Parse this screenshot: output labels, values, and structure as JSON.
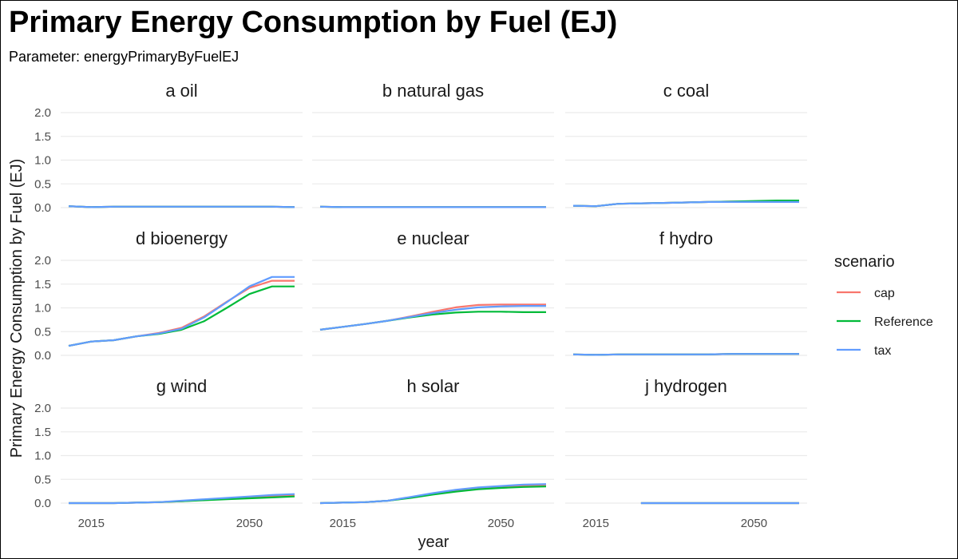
{
  "chart_data": {
    "type": "line",
    "title": "Primary Energy Consumption by Fuel (EJ)",
    "subtitle": "Parameter: energyPrimaryByFuelEJ",
    "xlabel": "year",
    "ylabel": "Primary Energy Consumption by Fuel (EJ)",
    "xlim": [
      2010,
      2060
    ],
    "ylim": [
      -0.05,
      2.1
    ],
    "yticks": [
      0.0,
      0.5,
      1.0,
      1.5,
      2.0
    ],
    "ytick_labels": [
      "0.0",
      "0.5",
      "1.0",
      "1.5",
      "2.0"
    ],
    "xticks": [
      2015,
      2050
    ],
    "xtick_labels": [
      "2015",
      "2050"
    ],
    "grid": true,
    "legend": {
      "title": "scenario",
      "placement": "right"
    },
    "colors": {
      "cap": "#F8766D",
      "Reference": "#00BA38",
      "tax": "#619CFF"
    },
    "series_names": [
      "cap",
      "Reference",
      "tax"
    ],
    "panels": [
      {
        "label": "a oil",
        "series": [
          {
            "name": "cap",
            "x": [
              2010,
              2015,
              2020,
              2025,
              2030,
              2035,
              2040,
              2045,
              2050,
              2055,
              2060
            ],
            "y": [
              0.03,
              0.01,
              0.02,
              0.02,
              0.02,
              0.02,
              0.02,
              0.02,
              0.02,
              0.02,
              0.01
            ]
          },
          {
            "name": "Reference",
            "x": [
              2010,
              2015,
              2020,
              2025,
              2030,
              2035,
              2040,
              2045,
              2050,
              2055,
              2060
            ],
            "y": [
              0.03,
              0.01,
              0.02,
              0.02,
              0.02,
              0.02,
              0.02,
              0.02,
              0.02,
              0.02,
              0.01
            ]
          },
          {
            "name": "tax",
            "x": [
              2010,
              2015,
              2020,
              2025,
              2030,
              2035,
              2040,
              2045,
              2050,
              2055,
              2060
            ],
            "y": [
              0.03,
              0.01,
              0.02,
              0.02,
              0.02,
              0.02,
              0.02,
              0.02,
              0.02,
              0.02,
              0.01
            ]
          }
        ]
      },
      {
        "label": "b natural gas",
        "series": [
          {
            "name": "cap",
            "x": [
              2010,
              2015,
              2020,
              2025,
              2030,
              2035,
              2040,
              2045,
              2050,
              2055,
              2060
            ],
            "y": [
              0.02,
              0.01,
              0.01,
              0.01,
              0.01,
              0.01,
              0.01,
              0.01,
              0.01,
              0.01,
              0.01
            ]
          },
          {
            "name": "Reference",
            "x": [
              2010,
              2015,
              2020,
              2025,
              2030,
              2035,
              2040,
              2045,
              2050,
              2055,
              2060
            ],
            "y": [
              0.02,
              0.01,
              0.01,
              0.01,
              0.01,
              0.01,
              0.01,
              0.01,
              0.01,
              0.01,
              0.01
            ]
          },
          {
            "name": "tax",
            "x": [
              2010,
              2015,
              2020,
              2025,
              2030,
              2035,
              2040,
              2045,
              2050,
              2055,
              2060
            ],
            "y": [
              0.02,
              0.01,
              0.01,
              0.01,
              0.01,
              0.01,
              0.01,
              0.01,
              0.01,
              0.01,
              0.01
            ]
          }
        ]
      },
      {
        "label": "c coal",
        "series": [
          {
            "name": "cap",
            "x": [
              2010,
              2015,
              2020,
              2025,
              2030,
              2035,
              2040,
              2045,
              2050,
              2055,
              2060
            ],
            "y": [
              0.04,
              0.03,
              0.08,
              0.09,
              0.1,
              0.11,
              0.12,
              0.13,
              0.13,
              0.13,
              0.13
            ]
          },
          {
            "name": "Reference",
            "x": [
              2010,
              2015,
              2020,
              2025,
              2030,
              2035,
              2040,
              2045,
              2050,
              2055,
              2060
            ],
            "y": [
              0.04,
              0.03,
              0.08,
              0.09,
              0.1,
              0.11,
              0.12,
              0.13,
              0.14,
              0.15,
              0.15
            ]
          },
          {
            "name": "tax",
            "x": [
              2010,
              2015,
              2020,
              2025,
              2030,
              2035,
              2040,
              2045,
              2050,
              2055,
              2060
            ],
            "y": [
              0.04,
              0.03,
              0.08,
              0.09,
              0.1,
              0.11,
              0.12,
              0.12,
              0.12,
              0.12,
              0.12
            ]
          }
        ]
      },
      {
        "label": "d bioenergy",
        "series": [
          {
            "name": "cap",
            "x": [
              2010,
              2015,
              2020,
              2025,
              2030,
              2035,
              2040,
              2045,
              2050,
              2055,
              2060
            ],
            "y": [
              0.2,
              0.29,
              0.32,
              0.4,
              0.47,
              0.58,
              0.82,
              1.13,
              1.42,
              1.57,
              1.57
            ]
          },
          {
            "name": "Reference",
            "x": [
              2010,
              2015,
              2020,
              2025,
              2030,
              2035,
              2040,
              2045,
              2050,
              2055,
              2060
            ],
            "y": [
              0.2,
              0.29,
              0.32,
              0.4,
              0.45,
              0.54,
              0.72,
              1.0,
              1.29,
              1.45,
              1.45
            ]
          },
          {
            "name": "tax",
            "x": [
              2010,
              2015,
              2020,
              2025,
              2030,
              2035,
              2040,
              2045,
              2050,
              2055,
              2060
            ],
            "y": [
              0.2,
              0.29,
              0.32,
              0.4,
              0.46,
              0.56,
              0.8,
              1.12,
              1.45,
              1.65,
              1.65
            ]
          }
        ]
      },
      {
        "label": "e nuclear",
        "series": [
          {
            "name": "cap",
            "x": [
              2010,
              2015,
              2020,
              2025,
              2030,
              2035,
              2040,
              2045,
              2050,
              2055,
              2060
            ],
            "y": [
              0.54,
              0.6,
              0.66,
              0.73,
              0.82,
              0.92,
              1.01,
              1.06,
              1.07,
              1.07,
              1.07
            ]
          },
          {
            "name": "Reference",
            "x": [
              2010,
              2015,
              2020,
              2025,
              2030,
              2035,
              2040,
              2045,
              2050,
              2055,
              2060
            ],
            "y": [
              0.54,
              0.6,
              0.66,
              0.73,
              0.8,
              0.86,
              0.9,
              0.92,
              0.92,
              0.91,
              0.91
            ]
          },
          {
            "name": "tax",
            "x": [
              2010,
              2015,
              2020,
              2025,
              2030,
              2035,
              2040,
              2045,
              2050,
              2055,
              2060
            ],
            "y": [
              0.54,
              0.6,
              0.66,
              0.73,
              0.81,
              0.89,
              0.96,
              1.01,
              1.03,
              1.04,
              1.04
            ]
          }
        ]
      },
      {
        "label": "f hydro",
        "series": [
          {
            "name": "cap",
            "x": [
              2010,
              2015,
              2020,
              2025,
              2030,
              2035,
              2040,
              2045,
              2050,
              2055,
              2060
            ],
            "y": [
              0.02,
              0.01,
              0.02,
              0.02,
              0.02,
              0.02,
              0.02,
              0.03,
              0.03,
              0.03,
              0.03
            ]
          },
          {
            "name": "Reference",
            "x": [
              2010,
              2015,
              2020,
              2025,
              2030,
              2035,
              2040,
              2045,
              2050,
              2055,
              2060
            ],
            "y": [
              0.02,
              0.01,
              0.02,
              0.02,
              0.02,
              0.02,
              0.02,
              0.03,
              0.03,
              0.03,
              0.03
            ]
          },
          {
            "name": "tax",
            "x": [
              2010,
              2015,
              2020,
              2025,
              2030,
              2035,
              2040,
              2045,
              2050,
              2055,
              2060
            ],
            "y": [
              0.02,
              0.01,
              0.02,
              0.02,
              0.02,
              0.02,
              0.02,
              0.03,
              0.03,
              0.03,
              0.03
            ]
          }
        ]
      },
      {
        "label": "g wind",
        "series": [
          {
            "name": "cap",
            "x": [
              2010,
              2015,
              2020,
              2025,
              2030,
              2035,
              2040,
              2045,
              2050,
              2055,
              2060
            ],
            "y": [
              0.0,
              0.0,
              0.0,
              0.01,
              0.02,
              0.04,
              0.07,
              0.1,
              0.13,
              0.15,
              0.16
            ]
          },
          {
            "name": "Reference",
            "x": [
              2010,
              2015,
              2020,
              2025,
              2030,
              2035,
              2040,
              2045,
              2050,
              2055,
              2060
            ],
            "y": [
              0.0,
              0.0,
              0.0,
              0.01,
              0.02,
              0.04,
              0.06,
              0.08,
              0.1,
              0.12,
              0.14
            ]
          },
          {
            "name": "tax",
            "x": [
              2010,
              2015,
              2020,
              2025,
              2030,
              2035,
              2040,
              2045,
              2050,
              2055,
              2060
            ],
            "y": [
              0.0,
              0.0,
              0.0,
              0.01,
              0.02,
              0.05,
              0.08,
              0.11,
              0.14,
              0.17,
              0.19
            ]
          }
        ]
      },
      {
        "label": "h solar",
        "series": [
          {
            "name": "cap",
            "x": [
              2010,
              2015,
              2020,
              2025,
              2030,
              2035,
              2040,
              2045,
              2050,
              2055,
              2060
            ],
            "y": [
              0.0,
              0.01,
              0.02,
              0.05,
              0.12,
              0.2,
              0.27,
              0.32,
              0.35,
              0.37,
              0.38
            ]
          },
          {
            "name": "Reference",
            "x": [
              2010,
              2015,
              2020,
              2025,
              2030,
              2035,
              2040,
              2045,
              2050,
              2055,
              2060
            ],
            "y": [
              0.0,
              0.01,
              0.02,
              0.05,
              0.11,
              0.18,
              0.24,
              0.29,
              0.32,
              0.34,
              0.35
            ]
          },
          {
            "name": "tax",
            "x": [
              2010,
              2015,
              2020,
              2025,
              2030,
              2035,
              2040,
              2045,
              2050,
              2055,
              2060
            ],
            "y": [
              0.0,
              0.01,
              0.02,
              0.05,
              0.13,
              0.21,
              0.28,
              0.33,
              0.36,
              0.39,
              0.4
            ]
          }
        ]
      },
      {
        "label": "j hydrogen",
        "series": [
          {
            "name": "cap",
            "x": [
              2025,
              2030,
              2035,
              2040,
              2045,
              2050,
              2055,
              2060
            ],
            "y": [
              0.0,
              0.0,
              0.0,
              0.0,
              0.0,
              0.0,
              0.0,
              0.0
            ]
          },
          {
            "name": "Reference",
            "x": [
              2025,
              2030,
              2035,
              2040,
              2045,
              2050,
              2055,
              2060
            ],
            "y": [
              0.0,
              0.0,
              0.0,
              0.0,
              0.0,
              0.0,
              0.0,
              0.0
            ]
          },
          {
            "name": "tax",
            "x": [
              2025,
              2030,
              2035,
              2040,
              2045,
              2050,
              2055,
              2060
            ],
            "y": [
              0.0,
              0.0,
              0.0,
              0.0,
              0.0,
              0.0,
              0.0,
              0.0
            ]
          }
        ]
      }
    ]
  }
}
